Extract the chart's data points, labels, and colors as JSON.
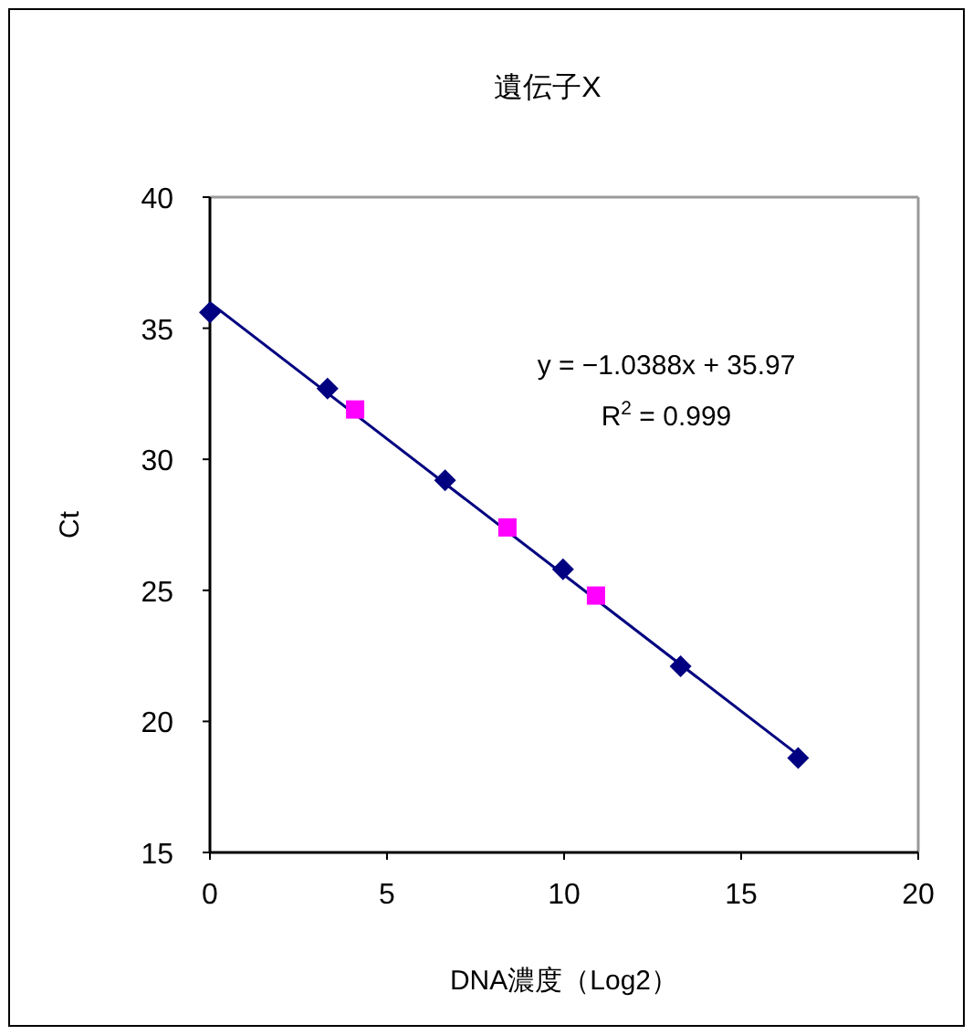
{
  "chart_data": {
    "type": "scatter",
    "title": "遺伝子X",
    "xlabel": "DNA濃度（Log2）",
    "ylabel": "Ct",
    "xlim": [
      0,
      20
    ],
    "xticks": [
      0,
      5,
      10,
      15,
      20
    ],
    "ylim": [
      15,
      40
    ],
    "yticks": [
      15,
      20,
      25,
      30,
      35,
      40
    ],
    "grid": false,
    "series": [
      {
        "type": "line",
        "color": "#000080",
        "marker": "none",
        "line_style": "solid",
        "x": [
          0,
          16.61
        ],
        "values": [
          35.97,
          18.72
        ]
      },
      {
        "type": "scatter",
        "color": "#000080",
        "marker": "diamond",
        "x": [
          0,
          3.32,
          6.64,
          9.97,
          13.29,
          16.61
        ],
        "values": [
          35.6,
          32.7,
          29.2,
          25.8,
          22.1,
          18.6
        ]
      },
      {
        "type": "scatter",
        "color": "#ff00ff",
        "marker": "square",
        "x": [
          4.1,
          8.4,
          10.9
        ],
        "values": [
          31.9,
          27.4,
          24.8
        ]
      }
    ],
    "annotations": [
      "y = −1.0388x + 35.97",
      "R$^{2}$ = 0.999"
    ]
  }
}
